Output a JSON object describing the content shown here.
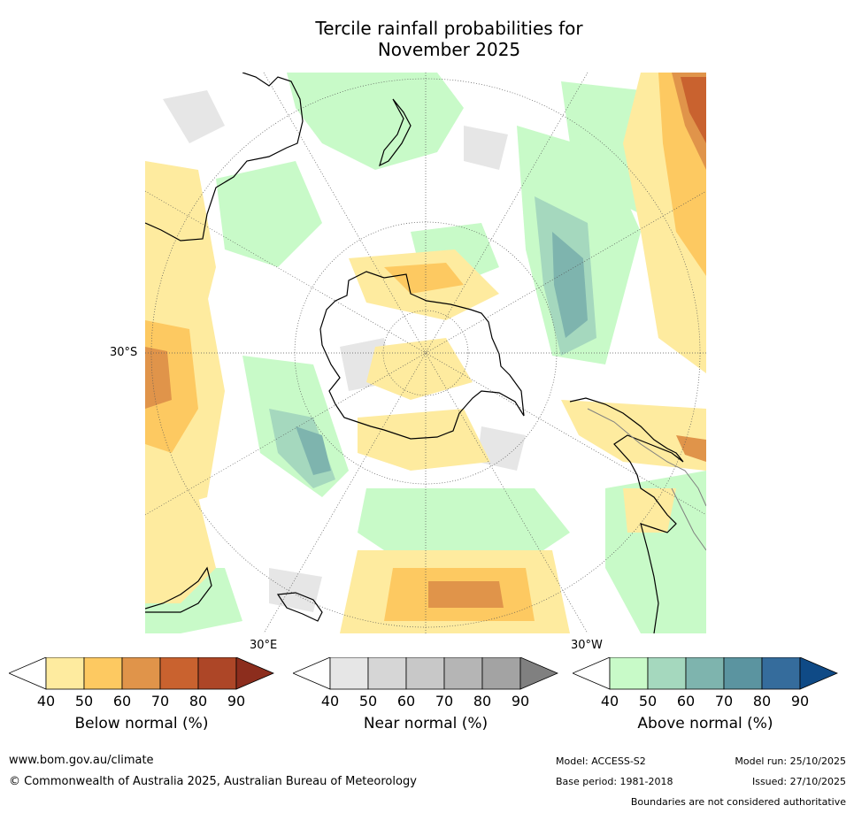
{
  "title": {
    "line1": "Tercile rainfall probabilities for",
    "line2": "November 2025"
  },
  "map": {
    "labels": {
      "lat_30s": "30°S",
      "lon_30e": "30°E",
      "lon_30w": "30°W"
    },
    "colors": {
      "coast": "#000000",
      "boundary": "#808080",
      "graticule": "#555555"
    }
  },
  "legend": {
    "below": {
      "label": "Below normal (%)",
      "ticks": [
        "40",
        "50",
        "60",
        "70",
        "80",
        "90"
      ],
      "colors": [
        "#ffffff",
        "#feeb9f",
        "#fdc961",
        "#e0944a",
        "#c9622f",
        "#ad4627",
        "#8c2d1d"
      ]
    },
    "near": {
      "label": "Near normal (%)",
      "ticks": [
        "40",
        "50",
        "60",
        "70",
        "80",
        "90"
      ],
      "colors": [
        "#ffffff",
        "#e6e6e6",
        "#d6d6d6",
        "#c8c8c8",
        "#b5b5b5",
        "#a3a3a3",
        "#808080"
      ]
    },
    "above": {
      "label": "Above normal (%)",
      "ticks": [
        "40",
        "50",
        "60",
        "70",
        "80",
        "90"
      ],
      "colors": [
        "#ffffff",
        "#c8fac8",
        "#a5d8be",
        "#7eb4ae",
        "#5b94a0",
        "#356c9c",
        "#0f4a86"
      ]
    }
  },
  "footer": {
    "url": "www.bom.gov.au/climate",
    "copyright": "© Commonwealth of Australia 2025, Australian Bureau of Meteorology",
    "model": "Model: ACCESS-S2",
    "base_period": "Base period: 1981-2018",
    "model_run": "Model run: 25/10/2025",
    "issued": "Issued: 27/10/2025",
    "disclaimer": "Boundaries are not considered authoritative"
  }
}
